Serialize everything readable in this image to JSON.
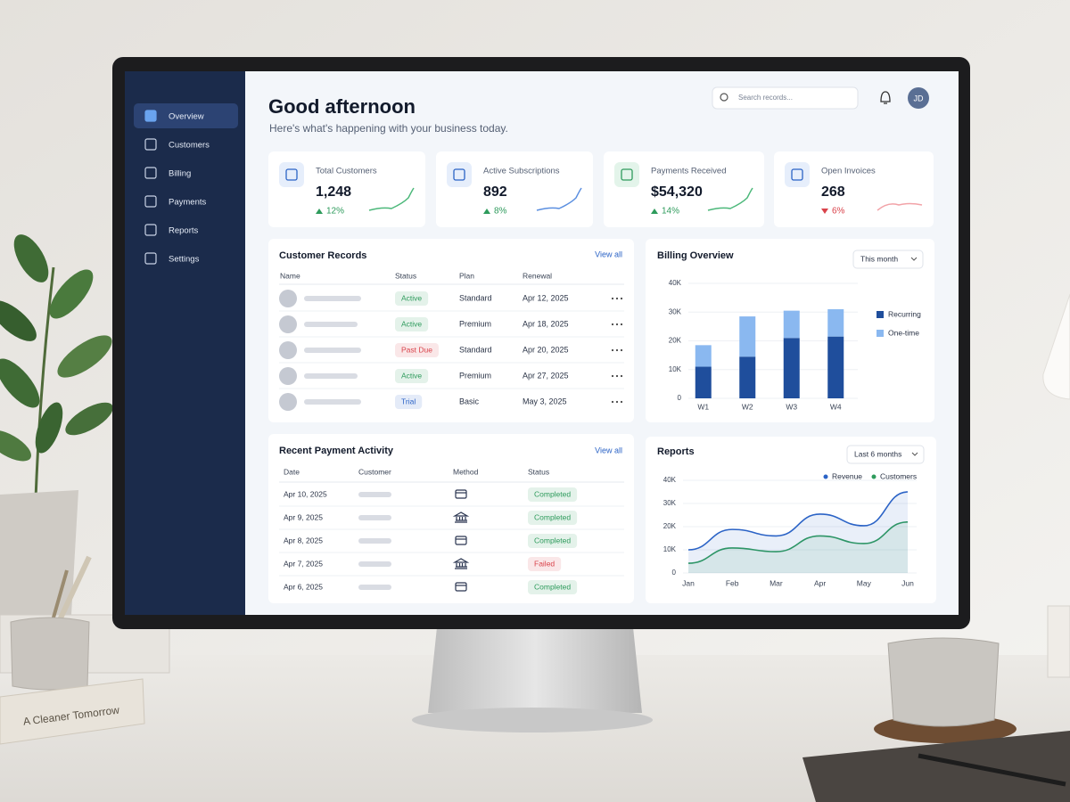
{
  "scene": {
    "book_title": "A Cleaner Tomorrow"
  },
  "sidebar": {
    "items": [
      "Overview",
      "Customers",
      "Billing",
      "Payments",
      "Reports",
      "Settings"
    ]
  },
  "header": {
    "title": "Good afternoon",
    "subtitle": "Here's what's happening with your business today.",
    "search_placeholder": "Search records...",
    "avatar": "JD"
  },
  "kpis": [
    {
      "label": "Total Customers",
      "value": "1,248",
      "change": "12%",
      "trend": "up",
      "color": "#2e9b5c"
    },
    {
      "label": "Active Subscriptions",
      "value": "892",
      "change": "8%",
      "trend": "up",
      "color": "#2e9b5c"
    },
    {
      "label": "Payments Received",
      "value": "$54,320",
      "change": "14%",
      "trend": "up",
      "color": "#2e9b5c"
    },
    {
      "label": "Open Invoices",
      "value": "268",
      "change": "6%",
      "trend": "down",
      "color": "#d9434b"
    }
  ],
  "customer_records": {
    "title": "Customer Records",
    "link": "View all",
    "columns": [
      "Name",
      "Status",
      "Plan",
      "Renewal"
    ],
    "rows": [
      {
        "status": "Active",
        "status_color": "#2e9b5c",
        "plan": "Standard",
        "renewal": "Apr 12, 2025"
      },
      {
        "status": "Active",
        "status_color": "#2e9b5c",
        "plan": "Premium",
        "renewal": "Apr 18, 2025"
      },
      {
        "status": "Past Due",
        "status_color": "#d9434b",
        "plan": "Standard",
        "renewal": "Apr 20, 2025"
      },
      {
        "status": "Active",
        "status_color": "#2e9b5c",
        "plan": "Premium",
        "renewal": "Apr 27, 2025"
      },
      {
        "status": "Trial",
        "status_color": "#2b63c6",
        "plan": "Basic",
        "renewal": "May 3, 2025"
      }
    ]
  },
  "payment_activity": {
    "title": "Recent Payment Activity",
    "link": "View all",
    "columns": [
      "Date",
      "Customer",
      "Method",
      "Status"
    ],
    "rows": [
      {
        "date": "Apr 10, 2025",
        "status": "Completed",
        "status_color": "#2e9b5c"
      },
      {
        "date": "Apr 9, 2025",
        "status": "Completed",
        "status_color": "#2e9b5c"
      },
      {
        "date": "Apr 8, 2025",
        "status": "Completed",
        "status_color": "#2e9b5c"
      },
      {
        "date": "Apr 7, 2025",
        "status": "Failed",
        "status_color": "#d9434b"
      },
      {
        "date": "Apr 6, 2025",
        "status": "Completed",
        "status_color": "#2e9b5c"
      }
    ]
  },
  "chart_data": [
    {
      "type": "bar",
      "stacked": true,
      "title": "Billing Overview",
      "filter": "This month",
      "legend": "right",
      "grid": true,
      "categories": [
        "W1",
        "W2",
        "W3",
        "W4"
      ],
      "series": [
        {
          "name": "Recurring",
          "color": "#1f4e9c",
          "values": [
            11000,
            14500,
            21000,
            21500
          ]
        },
        {
          "name": "One-time",
          "color": "#8ab8f0",
          "values": [
            7500,
            14000,
            9500,
            9500
          ]
        }
      ],
      "ylim": [
        0,
        40000
      ],
      "yticks": [
        0,
        {
          "value": 10000,
          "label": "10K"
        },
        {
          "value": 20000,
          "label": "20K"
        },
        {
          "value": 30000,
          "label": "30K"
        },
        {
          "value": 40000,
          "label": "40K"
        }
      ]
    },
    {
      "type": "line",
      "area": true,
      "title": "Reports",
      "filter": "Last 6 months",
      "legend": "top",
      "grid": true,
      "categories": [
        "Jan",
        "Feb",
        "Mar",
        "Apr",
        "May",
        "Jun"
      ],
      "series": [
        {
          "name": "Revenue",
          "color": "#2b63c6",
          "values": [
            10000,
            18800,
            16000,
            25400,
            20400,
            35000
          ]
        },
        {
          "name": "Customers",
          "color": "#2e9b5c",
          "values": [
            4200,
            10800,
            9200,
            16000,
            12700,
            22000
          ]
        }
      ],
      "ylim": [
        0,
        40000
      ],
      "yticks": [
        0,
        {
          "value": 10000,
          "label": "10K"
        },
        {
          "value": 20000,
          "label": "20K"
        },
        {
          "value": 30000,
          "label": "30K"
        },
        {
          "value": 40000,
          "label": "40K"
        }
      ]
    }
  ]
}
